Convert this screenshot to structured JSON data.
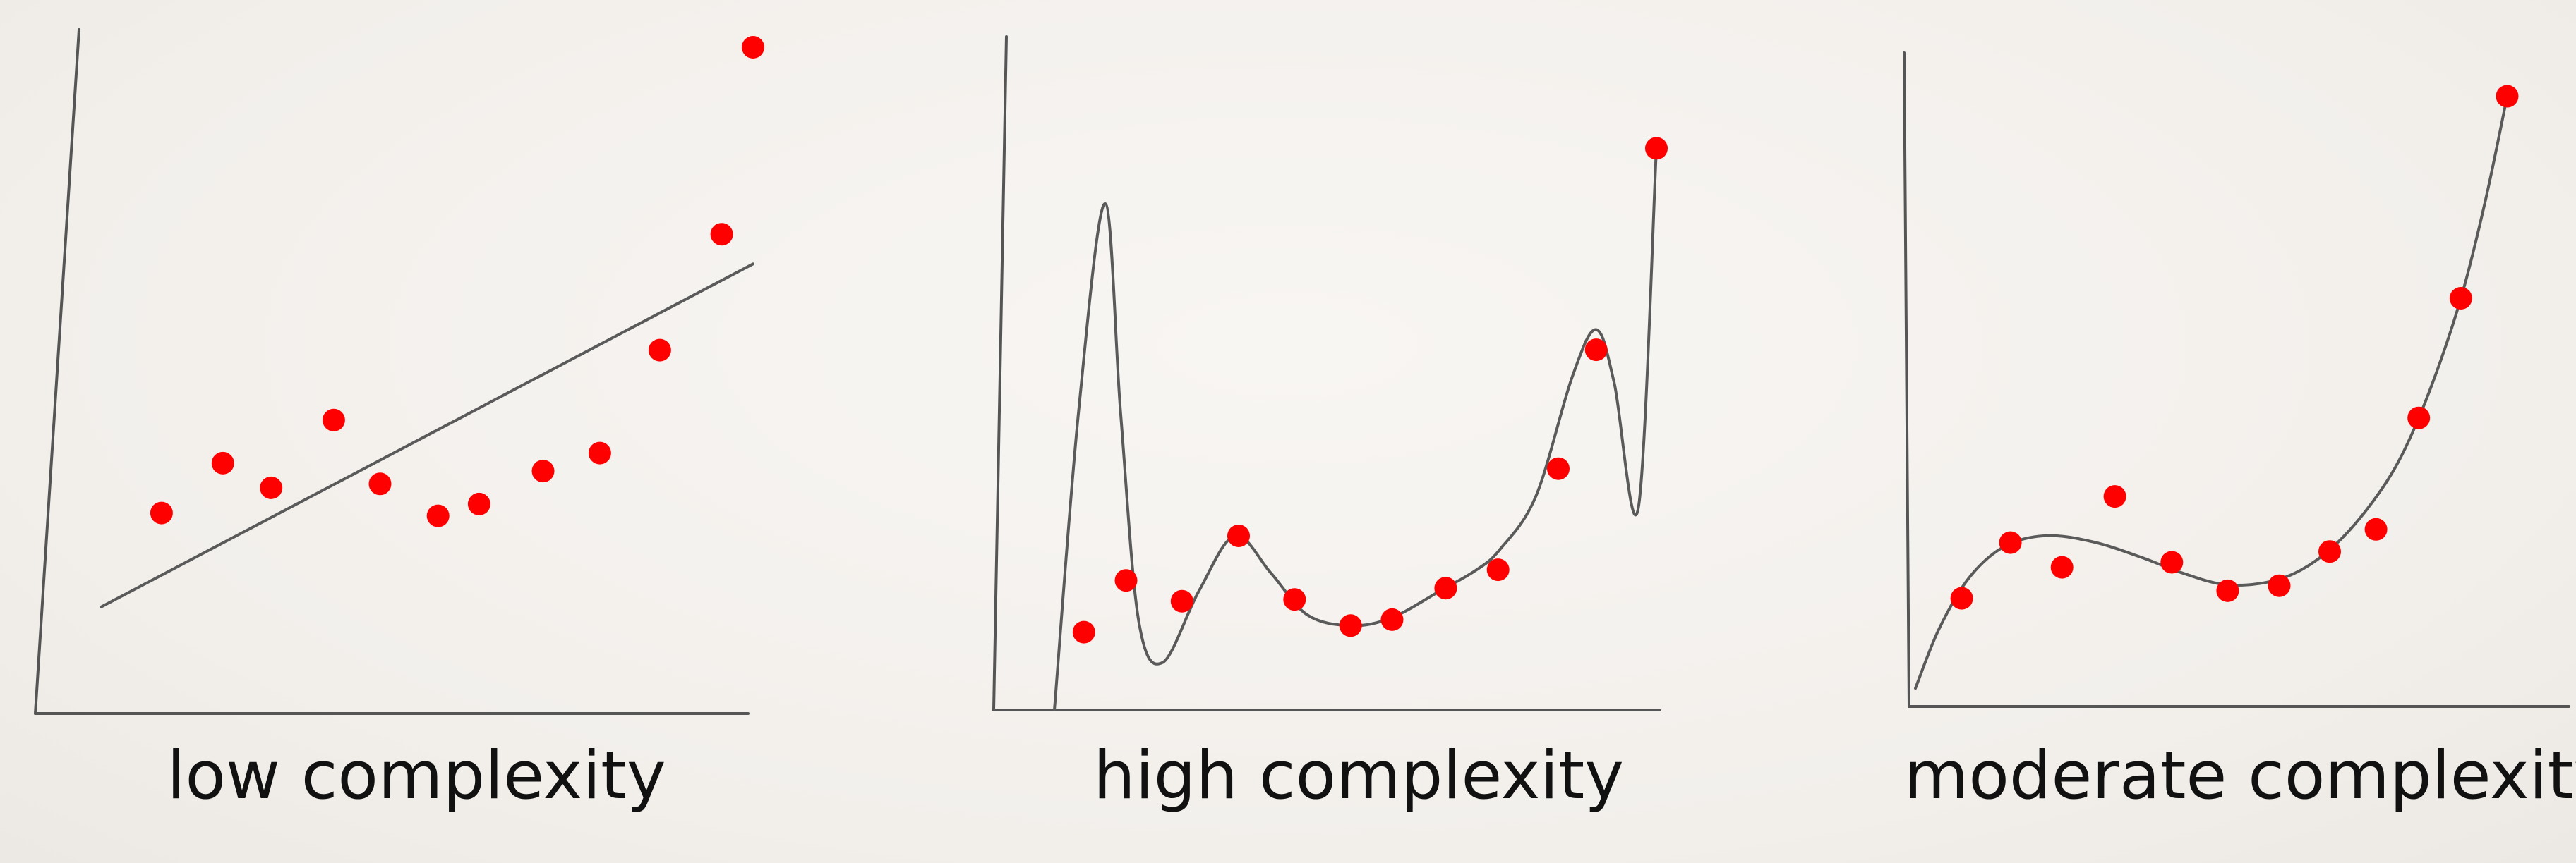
{
  "colors": {
    "point": "#ff0000",
    "model_line": "#5a5a5a",
    "axis": "#555555",
    "text": "#111111",
    "background": "#f4f1ee"
  },
  "chart_data": [
    {
      "type": "scatter",
      "title": "low complexity",
      "xlabel": "",
      "ylabel": "",
      "xlim": [
        0,
        10
      ],
      "ylim": [
        0,
        10
      ],
      "grid": false,
      "series": [
        {
          "kind": "points",
          "x": [
            0.93,
            1.87,
            2.61,
            3.57,
            4.28,
            5.17,
            5.8,
            6.78,
            7.65,
            8.57,
            9.52,
            10.0
          ],
          "y": [
            1.68,
            2.57,
            2.13,
            3.34,
            2.2,
            1.63,
            1.84,
            2.43,
            2.75,
            4.59,
            6.66,
            10.0
          ]
        },
        {
          "kind": "line",
          "model": "linear",
          "x": [
            0,
            10
          ],
          "y": [
            0,
            6.13
          ]
        }
      ]
    },
    {
      "type": "scatter",
      "title": "high complexity",
      "xlabel": "",
      "ylabel": "",
      "xlim": [
        0,
        10
      ],
      "ylim": [
        0,
        10
      ],
      "grid": false,
      "series": [
        {
          "kind": "points",
          "x": [
            0.49,
            1.19,
            2.12,
            3.06,
            3.99,
            4.92,
            5.61,
            6.5,
            7.37,
            8.37,
            9.0,
            10.0
          ],
          "y": [
            1.31,
            2.18,
            1.83,
            2.93,
            1.86,
            1.42,
            1.52,
            2.05,
            2.36,
            4.06,
            6.06,
            9.45
          ]
        },
        {
          "kind": "line",
          "model": "high-degree polynomial",
          "x": [
            0.0,
            0.4,
            0.84,
            1.1,
            1.4,
            1.8,
            2.4,
            3.0,
            3.6,
            4.2,
            4.92,
            5.6,
            6.4,
            7.0,
            7.4,
            8.0,
            8.6,
            9.0,
            9.3,
            9.7,
            10.0
          ],
          "y": [
            0.0,
            5.0,
            8.52,
            5.0,
            1.5,
            0.8,
            2.0,
            2.93,
            2.3,
            1.6,
            1.42,
            1.55,
            2.0,
            2.35,
            2.7,
            3.6,
            5.6,
            6.4,
            5.5,
            3.4,
            9.45
          ]
        }
      ]
    },
    {
      "type": "scatter",
      "title": "moderate complexity",
      "xlabel": "",
      "ylabel": "",
      "xlim": [
        0,
        10
      ],
      "ylim": [
        0,
        10
      ],
      "grid": false,
      "series": [
        {
          "kind": "points",
          "x": [
            0.78,
            1.6,
            2.47,
            3.36,
            4.32,
            5.26,
            6.13,
            6.98,
            7.76,
            8.48,
            9.19,
            9.97
          ],
          "y": [
            1.73,
            2.61,
            2.22,
            3.34,
            2.3,
            1.85,
            1.93,
            2.47,
            2.82,
            4.58,
            6.47,
            9.66
          ]
        },
        {
          "kind": "line",
          "model": "cubic polynomial",
          "x": [
            0.0,
            0.4,
            0.9,
            1.5,
            2.2,
            3.0,
            3.8,
            4.5,
            5.2,
            5.9,
            6.5,
            7.1,
            7.7,
            8.2,
            8.7,
            9.2,
            9.6,
            9.97
          ],
          "y": [
            0.31,
            1.25,
            2.05,
            2.55,
            2.72,
            2.62,
            2.38,
            2.13,
            1.95,
            1.98,
            2.18,
            2.6,
            3.25,
            4.0,
            5.1,
            6.5,
            8.0,
            9.66
          ]
        }
      ]
    }
  ]
}
